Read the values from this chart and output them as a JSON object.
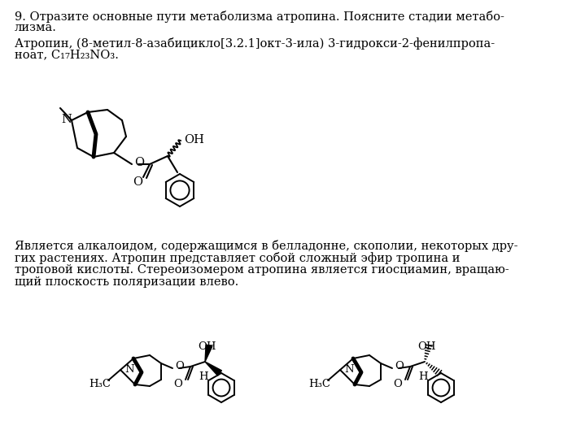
{
  "bg_color": "#ffffff",
  "text_color": "#000000",
  "line1": "9. Отразите основные пути метаболизма атропина. Поясните стадии метабо-",
  "line2": "лизма.",
  "line3": "Атропин, (8-метил-8-азабицикло[3.2.1]окт-3-ила) 3-гидрокси-2-фенилпропа-",
  "line4": "ноат, C₁₇H₂₃NO₃.",
  "para2_lines": [
    "Является алкалоидом, содержащимся в белладонне, скополии, некоторых дру-",
    "гих растениях. Атропин представляет собой сложный эфир тропина и",
    "троповой кислоты. Стереоизомером атропина является гиосциамин, вращаю-",
    "щий плоскость поляризации влево."
  ],
  "font_size": 10.5,
  "font_size_small": 9.5
}
